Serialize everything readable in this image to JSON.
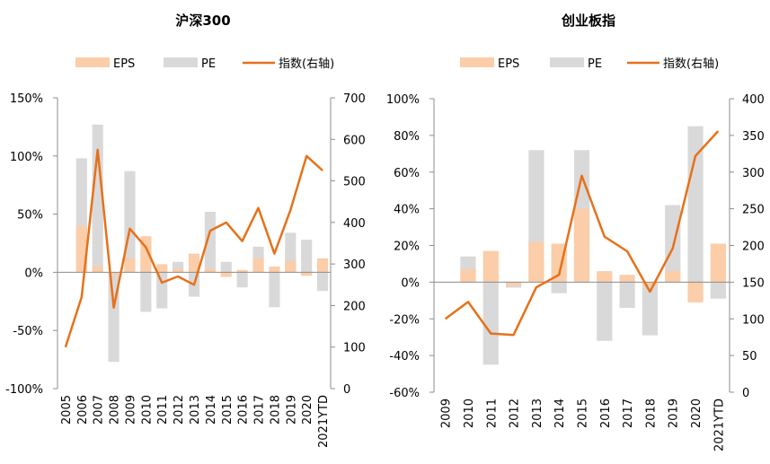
{
  "chart_data": [
    {
      "type": "bar",
      "title": "沪深300",
      "legend": {
        "placement": "top",
        "entries": [
          "EPS",
          "PE",
          "指数(右轴)"
        ]
      },
      "categories": [
        "2005",
        "2006",
        "2007",
        "2008",
        "2009",
        "2010",
        "2011",
        "2012",
        "2013",
        "2014",
        "2015",
        "2016",
        "2017",
        "2018",
        "2019",
        "2020",
        "2021YTD"
      ],
      "y_left": {
        "ylim": [
          -100,
          150
        ],
        "ticks": [
          -100,
          -50,
          0,
          50,
          100,
          150
        ],
        "tick_labels": [
          "-100%",
          "-50%",
          "0%",
          "50%",
          "100%",
          "150%"
        ]
      },
      "y_right": {
        "ylim": [
          0,
          700
        ],
        "ticks": [
          0,
          100,
          200,
          300,
          400,
          500,
          600,
          700
        ],
        "tick_labels": [
          "0",
          "100",
          "200",
          "300",
          "400",
          "500",
          "600",
          "700"
        ]
      },
      "series": [
        {
          "name": "EPS",
          "kind": "bar",
          "color": "#fbcda8",
          "values": [
            null,
            40,
            5,
            -2,
            12,
            31,
            7,
            3,
            16,
            3,
            -4,
            2,
            12,
            5,
            10,
            -3,
            12
          ]
        },
        {
          "name": "PE",
          "kind": "bar",
          "color": "#d9d9d9",
          "values": [
            null,
            98,
            127,
            -77,
            87,
            -34,
            -31,
            9,
            -21,
            52,
            9,
            -13,
            22,
            -30,
            34,
            28,
            -16
          ]
        },
        {
          "name": "指数(右轴)",
          "kind": "line",
          "axis": "right",
          "color": "#e6711a",
          "values": [
            100,
            220,
            575,
            195,
            385,
            340,
            255,
            270,
            250,
            380,
            400,
            355,
            435,
            325,
            430,
            560,
            525
          ]
        }
      ],
      "grid": false
    },
    {
      "type": "bar",
      "title": "创业板指",
      "legend": {
        "placement": "top",
        "entries": [
          "EPS",
          "PE",
          "指数(右轴)"
        ]
      },
      "categories": [
        "2009",
        "2010",
        "2011",
        "2012",
        "2013",
        "2014",
        "2015",
        "2016",
        "2017",
        "2018",
        "2019",
        "2020",
        "2021YTD"
      ],
      "y_left": {
        "ylim": [
          -60,
          100
        ],
        "ticks": [
          -60,
          -40,
          -20,
          0,
          20,
          40,
          60,
          80,
          100
        ],
        "tick_labels": [
          "-60%",
          "-40%",
          "-20%",
          "0%",
          "20%",
          "40%",
          "60%",
          "80%",
          "100%"
        ]
      },
      "y_right": {
        "ylim": [
          0,
          400
        ],
        "ticks": [
          0,
          50,
          100,
          150,
          200,
          250,
          300,
          350,
          400
        ],
        "tick_labels": [
          "0",
          "50",
          "100",
          "150",
          "200",
          "250",
          "300",
          "350",
          "400"
        ]
      },
      "series": [
        {
          "name": "EPS",
          "kind": "bar",
          "color": "#fbcda8",
          "values": [
            null,
            7,
            17,
            -2,
            22,
            21,
            40,
            6,
            4,
            -2,
            6,
            -11,
            21
          ]
        },
        {
          "name": "PE",
          "kind": "bar",
          "color": "#d9d9d9",
          "values": [
            null,
            14,
            -45,
            -3,
            72,
            -6,
            72,
            -32,
            -14,
            -29,
            42,
            85,
            -9
          ]
        },
        {
          "name": "指数(右轴)",
          "kind": "line",
          "axis": "right",
          "color": "#e6711a",
          "values": [
            100,
            123,
            80,
            78,
            143,
            160,
            295,
            212,
            192,
            137,
            196,
            322,
            356
          ]
        }
      ],
      "grid": false
    }
  ]
}
